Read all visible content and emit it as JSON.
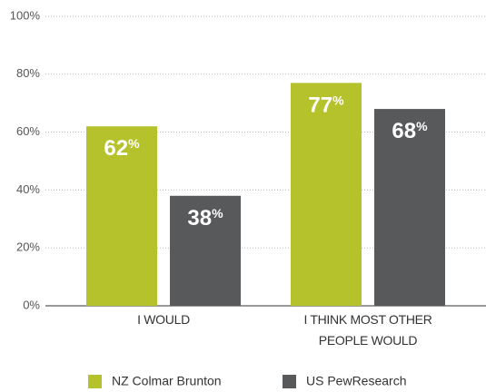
{
  "chart_data": {
    "type": "bar",
    "categories": [
      "I WOULD",
      "I THINK MOST OTHER PEOPLE WOULD"
    ],
    "series": [
      {
        "name": "NZ Colmar Brunton",
        "color": "#b5c22b",
        "values": [
          62,
          77
        ],
        "value_labels": [
          "62%",
          "77%"
        ]
      },
      {
        "name": "US PewResearch",
        "color": "#58595b",
        "values": [
          38,
          68
        ],
        "value_labels": [
          "38%",
          "68%"
        ]
      }
    ],
    "ylim": [
      0,
      100
    ],
    "yticks": [
      {
        "value": 0,
        "label": "0%"
      },
      {
        "value": 20,
        "label": "20%"
      },
      {
        "value": 40,
        "label": "40%"
      },
      {
        "value": 60,
        "label": "60%"
      },
      {
        "value": 80,
        "label": "80%"
      },
      {
        "value": 100,
        "label": "100%"
      }
    ],
    "grid": true
  }
}
